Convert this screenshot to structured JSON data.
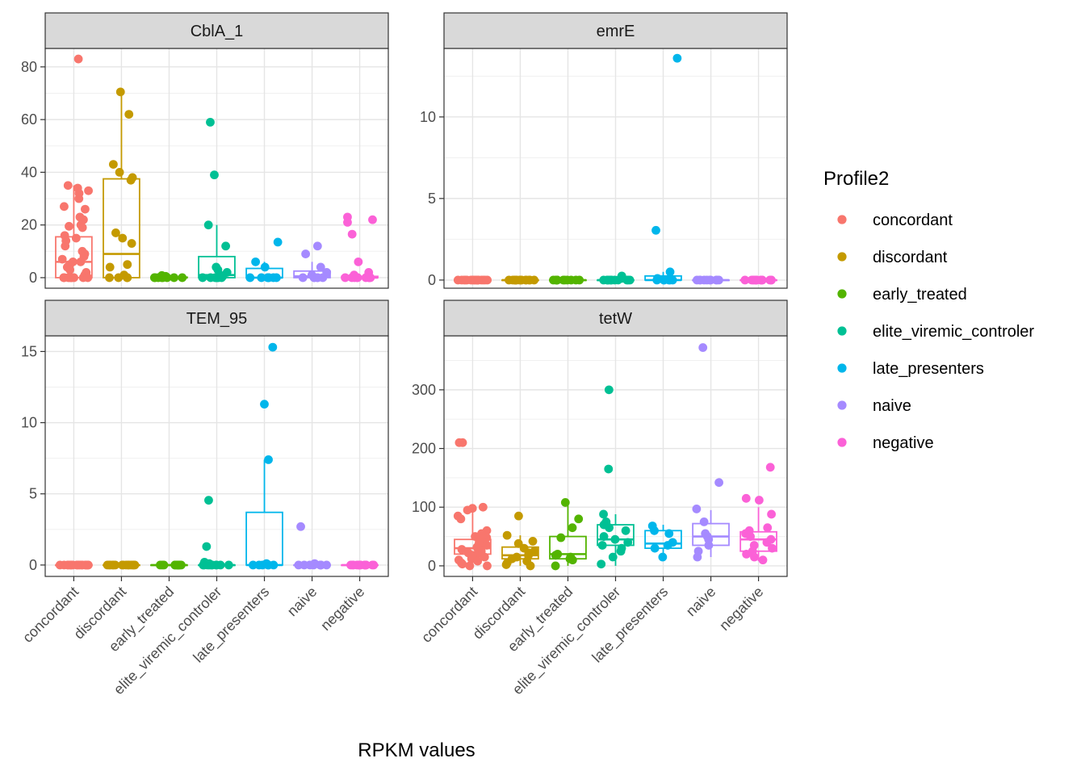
{
  "chart_data": {
    "type": "boxplot",
    "xlabel": "RPKM values",
    "categories": [
      "concordant",
      "discordant",
      "early_treated",
      "elite_viremic_controler",
      "late_presenters",
      "naive",
      "negative"
    ],
    "legend": {
      "title": "Profile2",
      "position": "right",
      "entries": [
        "concordant",
        "discordant",
        "early_treated",
        "elite_viremic_controler",
        "late_presenters",
        "naive",
        "negative"
      ]
    },
    "colors": {
      "concordant": "#F8766D",
      "discordant": "#C49A00",
      "early_treated": "#53B400",
      "elite_viremic_controler": "#00C094",
      "late_presenters": "#00B6EB",
      "naive": "#A58AFF",
      "negative": "#FB61D7"
    },
    "grid": true,
    "facets": [
      {
        "title": "CblA_1",
        "ylim": [
          -4,
          87
        ],
        "yticks": [
          0,
          20,
          40,
          60,
          80
        ],
        "boxes": [
          {
            "q1": 0,
            "median": 6,
            "q3": 15.5,
            "lo": 0,
            "hi": 35
          },
          {
            "q1": 0,
            "median": 9,
            "q3": 37.5,
            "lo": 0,
            "hi": 70.5
          },
          {
            "q1": 0,
            "median": 0,
            "q3": 0.2,
            "lo": 0,
            "hi": 0.5
          },
          {
            "q1": 0,
            "median": 1,
            "q3": 8,
            "lo": 0,
            "hi": 20
          },
          {
            "q1": 0,
            "median": 0,
            "q3": 3.5,
            "lo": 0,
            "hi": 6
          },
          {
            "q1": 0,
            "median": 0.5,
            "q3": 2.5,
            "lo": 0,
            "hi": 6
          },
          {
            "q1": 0,
            "median": 0,
            "q3": 0.5,
            "lo": 0,
            "hi": 1
          }
        ],
        "points": [
          [
            83,
            35,
            34,
            33,
            32,
            30,
            27,
            26,
            23,
            22,
            20,
            19.5,
            19,
            16,
            15,
            14,
            12,
            10,
            9,
            8,
            7,
            6,
            6,
            5,
            4,
            3,
            2,
            1,
            0,
            0,
            0,
            0,
            0,
            0,
            0,
            0,
            0
          ],
          [
            70.5,
            62,
            43,
            40,
            38,
            37,
            17,
            15,
            13,
            5,
            4,
            1,
            0,
            0,
            0,
            0
          ],
          [
            0.8,
            0.5,
            0.3,
            0.2,
            0,
            0,
            0,
            0,
            0,
            0,
            0,
            0
          ],
          [
            59,
            39,
            20,
            12,
            4,
            3,
            2,
            1,
            0.5,
            0,
            0,
            0,
            0,
            0,
            0,
            0
          ],
          [
            13.5,
            6,
            4,
            0,
            0,
            0,
            0,
            0,
            0,
            0
          ],
          [
            12,
            9,
            4,
            2,
            1,
            0,
            0,
            0,
            0,
            0,
            0
          ],
          [
            23,
            22,
            21,
            16.5,
            6,
            2,
            1,
            0,
            0,
            0,
            0,
            0,
            0,
            0,
            0,
            0
          ]
        ]
      },
      {
        "title": "emrE",
        "ylim": [
          -0.5,
          14.2
        ],
        "yticks": [
          0,
          5,
          10
        ],
        "boxes": [
          {
            "q1": 0,
            "median": 0,
            "q3": 0,
            "lo": 0,
            "hi": 0
          },
          {
            "q1": 0,
            "median": 0,
            "q3": 0,
            "lo": 0,
            "hi": 0
          },
          {
            "q1": 0,
            "median": 0,
            "q3": 0,
            "lo": 0,
            "hi": 0
          },
          {
            "q1": 0,
            "median": 0,
            "q3": 0,
            "lo": 0,
            "hi": 0.05
          },
          {
            "q1": 0,
            "median": 0,
            "q3": 0.25,
            "lo": 0,
            "hi": 0.5
          },
          {
            "q1": 0,
            "median": 0,
            "q3": 0,
            "lo": 0,
            "hi": 0
          },
          {
            "q1": 0,
            "median": 0,
            "q3": 0,
            "lo": 0,
            "hi": 0
          }
        ],
        "points": [
          [
            0,
            0,
            0,
            0,
            0,
            0,
            0,
            0,
            0,
            0,
            0,
            0,
            0,
            0,
            0,
            0,
            0,
            0,
            0,
            0
          ],
          [
            0,
            0,
            0,
            0,
            0,
            0,
            0,
            0,
            0,
            0,
            0,
            0,
            0,
            0,
            0
          ],
          [
            0,
            0,
            0,
            0,
            0,
            0,
            0,
            0,
            0,
            0,
            0,
            0
          ],
          [
            0.25,
            0.1,
            0,
            0,
            0,
            0,
            0,
            0,
            0,
            0,
            0,
            0,
            0,
            0
          ],
          [
            13.6,
            3.05,
            0.5,
            0.1,
            0,
            0,
            0,
            0,
            0,
            0
          ],
          [
            0,
            0,
            0,
            0,
            0,
            0,
            0,
            0,
            0,
            0
          ],
          [
            0,
            0,
            0,
            0,
            0,
            0,
            0,
            0,
            0,
            0,
            0,
            0,
            0,
            0,
            0
          ]
        ]
      },
      {
        "title": "TEM_95",
        "ylim": [
          -0.8,
          16.1
        ],
        "yticks": [
          0,
          5,
          10,
          15
        ],
        "boxes": [
          {
            "q1": 0,
            "median": 0,
            "q3": 0,
            "lo": 0,
            "hi": 0
          },
          {
            "q1": 0,
            "median": 0,
            "q3": 0,
            "lo": 0,
            "hi": 0
          },
          {
            "q1": 0,
            "median": 0,
            "q3": 0,
            "lo": 0,
            "hi": 0
          },
          {
            "q1": 0,
            "median": 0,
            "q3": 0,
            "lo": 0,
            "hi": 0
          },
          {
            "q1": 0,
            "median": 0,
            "q3": 3.7,
            "lo": 0,
            "hi": 7.4
          },
          {
            "q1": 0,
            "median": 0,
            "q3": 0,
            "lo": 0,
            "hi": 0
          },
          {
            "q1": 0,
            "median": 0,
            "q3": 0,
            "lo": 0,
            "hi": 0
          }
        ],
        "points": [
          [
            0,
            0,
            0,
            0,
            0,
            0,
            0,
            0,
            0,
            0,
            0,
            0,
            0,
            0,
            0,
            0,
            0,
            0,
            0,
            0
          ],
          [
            0,
            0,
            0,
            0,
            0,
            0,
            0,
            0,
            0,
            0,
            0,
            0,
            0,
            0,
            0
          ],
          [
            0,
            0,
            0,
            0,
            0,
            0,
            0,
            0,
            0,
            0,
            0,
            0
          ],
          [
            4.55,
            1.3,
            0.2,
            0.1,
            0,
            0,
            0,
            0,
            0,
            0,
            0,
            0,
            0,
            0
          ],
          [
            15.3,
            11.3,
            7.4,
            0.1,
            0,
            0,
            0,
            0,
            0,
            0
          ],
          [
            2.7,
            0.1,
            0,
            0,
            0,
            0,
            0,
            0,
            0,
            0
          ],
          [
            0,
            0,
            0,
            0,
            0,
            0,
            0,
            0,
            0,
            0,
            0,
            0,
            0,
            0,
            0
          ]
        ]
      },
      {
        "title": "tetW",
        "ylim": [
          -18,
          392
        ],
        "yticks": [
          0,
          100,
          200,
          300
        ],
        "boxes": [
          {
            "q1": 20,
            "median": 30,
            "q3": 45,
            "lo": 0,
            "hi": 100
          },
          {
            "q1": 12,
            "median": 18,
            "q3": 32,
            "lo": 0,
            "hi": 52
          },
          {
            "q1": 12,
            "median": 20,
            "q3": 50,
            "lo": 0,
            "hi": 108
          },
          {
            "q1": 35,
            "median": 45,
            "q3": 70,
            "lo": 0,
            "hi": 88
          },
          {
            "q1": 30,
            "median": 38,
            "q3": 60,
            "lo": 15,
            "hi": 70
          },
          {
            "q1": 35,
            "median": 50,
            "q3": 72,
            "lo": 15,
            "hi": 95
          },
          {
            "q1": 25,
            "median": 45,
            "q3": 58,
            "lo": 8,
            "hi": 100
          }
        ],
        "points": [
          [
            210,
            210,
            100,
            98,
            95,
            85,
            80,
            60,
            55,
            50,
            48,
            45,
            40,
            38,
            35,
            32,
            30,
            28,
            25,
            22,
            20,
            18,
            15,
            12,
            10,
            8,
            5,
            3,
            0,
            0
          ],
          [
            85,
            52,
            42,
            38,
            30,
            25,
            22,
            18,
            15,
            12,
            8,
            5,
            2,
            0
          ],
          [
            108,
            80,
            65,
            48,
            20,
            18,
            15,
            12,
            10,
            0
          ],
          [
            300,
            165,
            88,
            75,
            70,
            65,
            60,
            50,
            45,
            40,
            35,
            30,
            25,
            15,
            3
          ],
          [
            68,
            60,
            55,
            40,
            35,
            30,
            15
          ],
          [
            372,
            142,
            97,
            75,
            55,
            50,
            45,
            35,
            25,
            15
          ],
          [
            168,
            115,
            112,
            88,
            65,
            60,
            55,
            50,
            45,
            40,
            35,
            30,
            25,
            20,
            15,
            10
          ]
        ]
      }
    ]
  }
}
